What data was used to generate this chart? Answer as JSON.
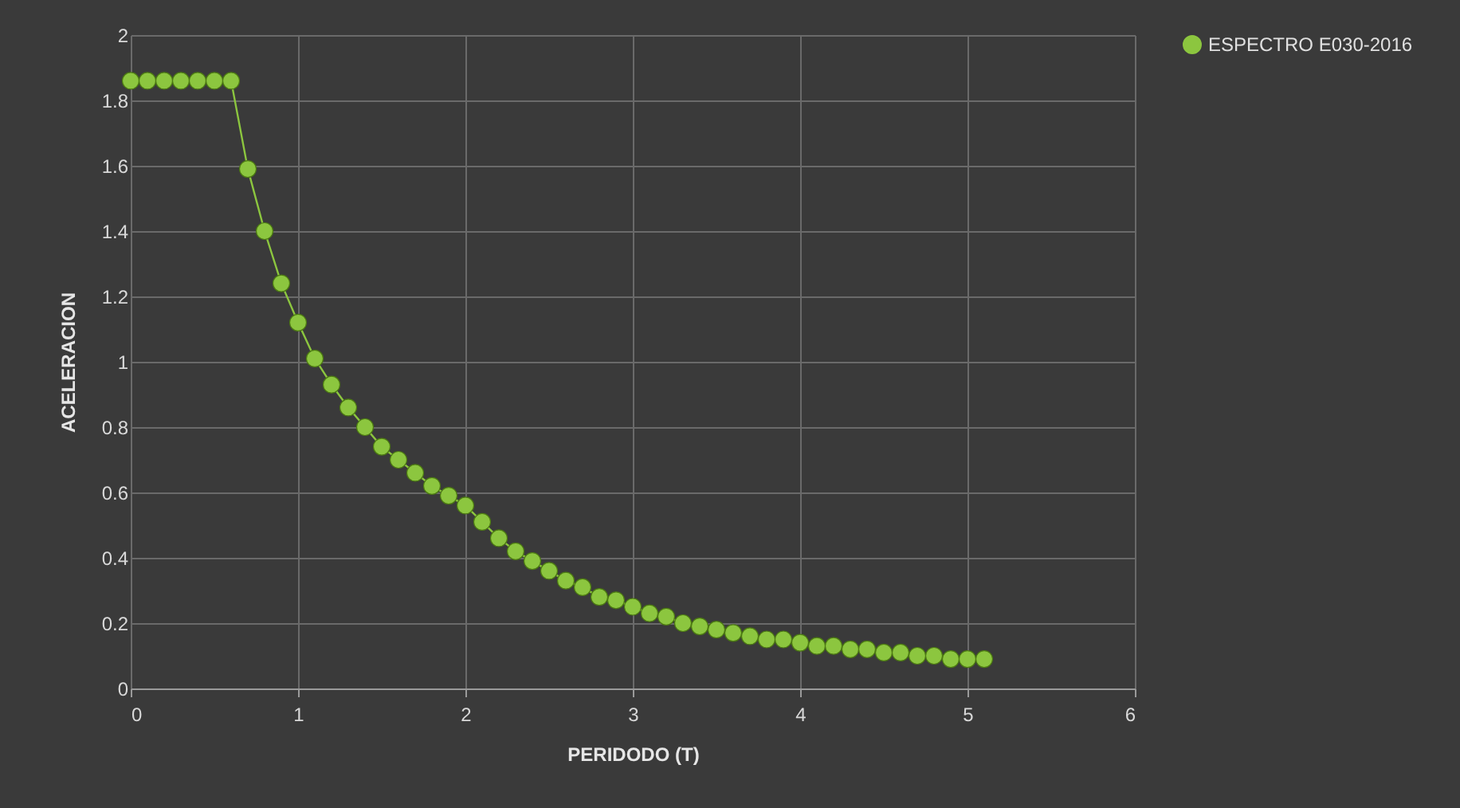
{
  "chart_data": {
    "type": "line",
    "xlabel": "PERIDODO (T)",
    "ylabel": "ACELERACION",
    "x": [
      0,
      0.1,
      0.2,
      0.3,
      0.4,
      0.5,
      0.6,
      0.7,
      0.8,
      0.9,
      1.0,
      1.1,
      1.2,
      1.3,
      1.4,
      1.5,
      1.6,
      1.7,
      1.8,
      1.9,
      2.0,
      2.1,
      2.2,
      2.3,
      2.4,
      2.5,
      2.6,
      2.7,
      2.8,
      2.9,
      3.0,
      3.1,
      3.2,
      3.3,
      3.4,
      3.5,
      3.6,
      3.7,
      3.8,
      3.9,
      4.0,
      4.1,
      4.2,
      4.3,
      4.4,
      4.5,
      4.6,
      4.7,
      4.8,
      4.9,
      5.0,
      5.1
    ],
    "series": [
      {
        "name": "ESPECTRO E030-2016",
        "color": "#8cc63f",
        "values": [
          1.86,
          1.86,
          1.86,
          1.86,
          1.86,
          1.86,
          1.86,
          1.59,
          1.4,
          1.24,
          1.12,
          1.01,
          0.93,
          0.86,
          0.8,
          0.74,
          0.7,
          0.66,
          0.62,
          0.59,
          0.56,
          0.51,
          0.46,
          0.42,
          0.39,
          0.36,
          0.33,
          0.31,
          0.28,
          0.27,
          0.25,
          0.23,
          0.22,
          0.2,
          0.19,
          0.18,
          0.17,
          0.16,
          0.15,
          0.15,
          0.14,
          0.13,
          0.13,
          0.12,
          0.12,
          0.11,
          0.11,
          0.1,
          0.1,
          0.09,
          0.09,
          0.09
        ]
      }
    ],
    "xlim": [
      0,
      6
    ],
    "xticks": [
      0,
      1,
      2,
      3,
      4,
      5,
      6
    ],
    "ylim": [
      0,
      2
    ],
    "yticks": [
      0,
      0.2,
      0.4,
      0.6,
      0.8,
      1,
      1.2,
      1.4,
      1.6,
      1.8,
      2
    ],
    "grid": true,
    "legend": "right",
    "marker": "circle",
    "line_style": "solid"
  }
}
